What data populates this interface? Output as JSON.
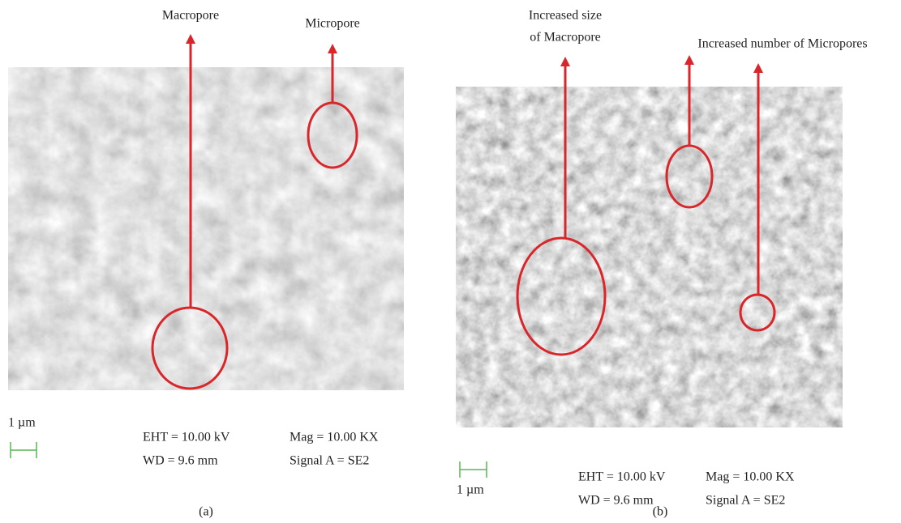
{
  "panels": [
    {
      "caption": "(a)",
      "annotations": [
        {
          "label": "Macropore"
        },
        {
          "label": "Micropore"
        }
      ],
      "scale_bar": "1 µm",
      "eht": "EHT = 10.00 kV",
      "wd": "WD = 9.6 mm",
      "mag": "Mag = 10.00 KX",
      "signal": "Signal A = SE2"
    },
    {
      "caption": "(b)",
      "annotations": [
        {
          "label": [
            "Increased size",
            "of Macropore"
          ]
        },
        {
          "label": "Increased number of Micropores"
        }
      ],
      "scale_bar": "1 µm",
      "eht": "EHT = 10.00 kV",
      "wd": "WD = 9.6 mm",
      "mag": "Mag = 10.00 KX",
      "signal": "Signal A = SE2"
    }
  ]
}
